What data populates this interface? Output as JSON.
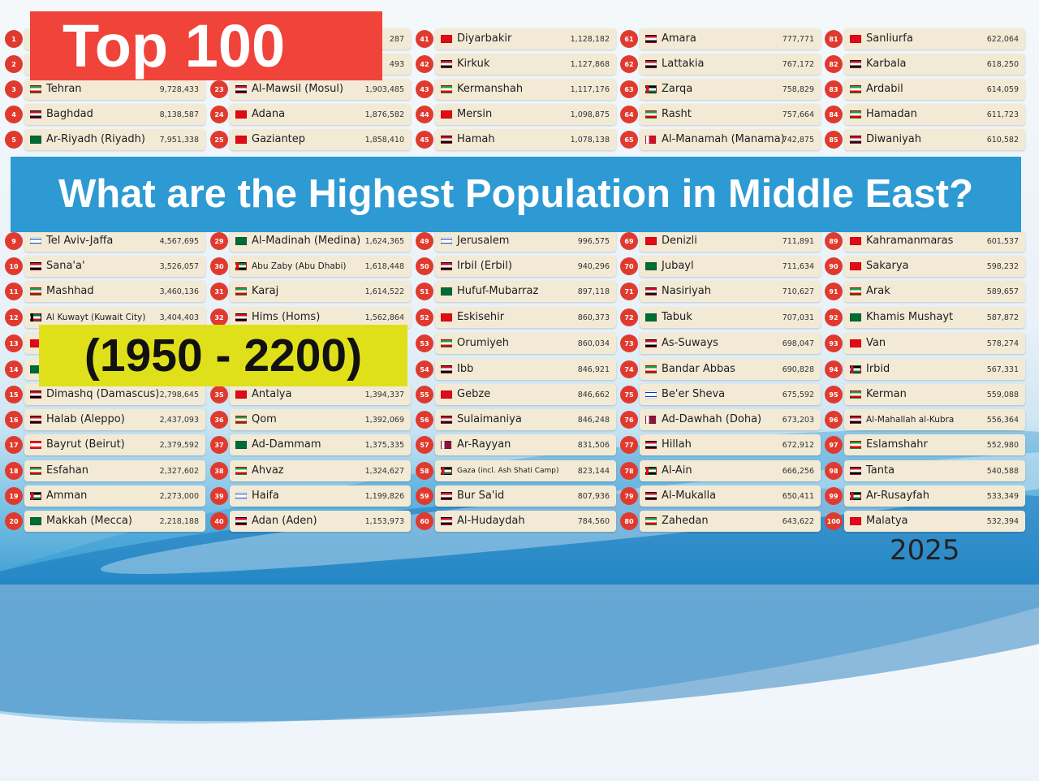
{
  "title_banner": "Top 100",
  "question_banner": "What are the Highest Population in Middle East?",
  "year_range_banner": "(1950 - 2200)",
  "current_year": "2025",
  "columns": [
    [
      {
        "rank": "1",
        "city": "",
        "pop": "",
        "flag": "ir"
      },
      {
        "rank": "2",
        "city": "",
        "pop": "",
        "flag": "ir"
      },
      {
        "rank": "3",
        "city": "Tehran",
        "pop": "9,728,433",
        "flag": "ir"
      },
      {
        "rank": "4",
        "city": "Baghdad",
        "pop": "8,138,587",
        "flag": "iq"
      },
      {
        "rank": "5",
        "city": "Ar-Riyadh (Riyadh)",
        "pop": "7,951,338",
        "flag": "sa"
      },
      {
        "rank": "",
        "city": "",
        "pop": "",
        "flag": ""
      },
      {
        "rank": "",
        "city": "",
        "pop": "",
        "flag": ""
      },
      {
        "rank": "",
        "city": "",
        "pop": "",
        "flag": ""
      },
      {
        "rank": "9",
        "city": "Tel Aviv-Jaffa",
        "pop": "4,567,695",
        "flag": "il"
      },
      {
        "rank": "10",
        "city": "Sana'a'",
        "pop": "3,526,057",
        "flag": "ye"
      },
      {
        "rank": "11",
        "city": "Mashhad",
        "pop": "3,460,136",
        "flag": "ir"
      },
      {
        "rank": "12",
        "city": "Al Kuwayt (Kuwait City)",
        "pop": "3,404,403",
        "flag": "kw"
      },
      {
        "rank": "13",
        "city": "",
        "pop": "",
        "flag": "tr"
      },
      {
        "rank": "14",
        "city": "",
        "pop": "",
        "flag": "sa"
      },
      {
        "rank": "15",
        "city": "Dimashq (Damascus)",
        "pop": "2,798,645",
        "flag": "sy"
      },
      {
        "rank": "16",
        "city": "Halab (Aleppo)",
        "pop": "2,437,093",
        "flag": "sy"
      },
      {
        "rank": "17",
        "city": "Bayrut (Beirut)",
        "pop": "2,379,592",
        "flag": "lb"
      },
      {
        "rank": "18",
        "city": "Esfahan",
        "pop": "2,327,602",
        "flag": "ir"
      },
      {
        "rank": "19",
        "city": "Amman",
        "pop": "2,273,000",
        "flag": "jo"
      },
      {
        "rank": "20",
        "city": "Makkah (Mecca)",
        "pop": "2,218,188",
        "flag": "sa"
      }
    ],
    [
      {
        "rank": "",
        "city": "",
        "pop": "287",
        "flag": ""
      },
      {
        "rank": "",
        "city": "",
        "pop": "493",
        "flag": ""
      },
      {
        "rank": "23",
        "city": "Al-Mawsil (Mosul)",
        "pop": "1,903,485",
        "flag": "iq"
      },
      {
        "rank": "24",
        "city": "Adana",
        "pop": "1,876,582",
        "flag": "tr"
      },
      {
        "rank": "25",
        "city": "Gaziantep",
        "pop": "1,858,410",
        "flag": "tr"
      },
      {
        "rank": "",
        "city": "",
        "pop": "",
        "flag": ""
      },
      {
        "rank": "",
        "city": "",
        "pop": "",
        "flag": ""
      },
      {
        "rank": "",
        "city": "",
        "pop": "",
        "flag": ""
      },
      {
        "rank": "29",
        "city": "Al-Madinah (Medina)",
        "pop": "1,624,365",
        "flag": "sa"
      },
      {
        "rank": "30",
        "city": "Abu Zaby (Abu Dhabi)",
        "pop": "1,618,448",
        "flag": "ae"
      },
      {
        "rank": "31",
        "city": "Karaj",
        "pop": "1,614,522",
        "flag": "ir"
      },
      {
        "rank": "32",
        "city": "Hims (Homs)",
        "pop": "1,562,864",
        "flag": "sy"
      },
      {
        "rank": "",
        "city": "",
        "pop": "",
        "flag": ""
      },
      {
        "rank": "",
        "city": "",
        "pop": "",
        "flag": ""
      },
      {
        "rank": "35",
        "city": "Antalya",
        "pop": "1,394,337",
        "flag": "tr"
      },
      {
        "rank": "36",
        "city": "Qom",
        "pop": "1,392,069",
        "flag": "ir"
      },
      {
        "rank": "37",
        "city": "Ad-Dammam",
        "pop": "1,375,335",
        "flag": "sa"
      },
      {
        "rank": "38",
        "city": "Ahvaz",
        "pop": "1,324,627",
        "flag": "ir"
      },
      {
        "rank": "39",
        "city": "Haifa",
        "pop": "1,199,826",
        "flag": "il"
      },
      {
        "rank": "40",
        "city": "Adan (Aden)",
        "pop": "1,153,973",
        "flag": "ye"
      }
    ],
    [
      {
        "rank": "41",
        "city": "Diyarbakir",
        "pop": "1,128,182",
        "flag": "tr"
      },
      {
        "rank": "42",
        "city": "Kirkuk",
        "pop": "1,127,868",
        "flag": "iq"
      },
      {
        "rank": "43",
        "city": "Kermanshah",
        "pop": "1,117,176",
        "flag": "ir"
      },
      {
        "rank": "44",
        "city": "Mersin",
        "pop": "1,098,875",
        "flag": "tr"
      },
      {
        "rank": "45",
        "city": "Hamah",
        "pop": "1,078,138",
        "flag": "sy"
      },
      {
        "rank": "",
        "city": "",
        "pop": "",
        "flag": ""
      },
      {
        "rank": "",
        "city": "",
        "pop": "",
        "flag": ""
      },
      {
        "rank": "",
        "city": "",
        "pop": "",
        "flag": ""
      },
      {
        "rank": "49",
        "city": "Jerusalem",
        "pop": "996,575",
        "flag": "il"
      },
      {
        "rank": "50",
        "city": "Irbil (Erbil)",
        "pop": "940,296",
        "flag": "iq"
      },
      {
        "rank": "51",
        "city": "Hufuf-Mubarraz",
        "pop": "897,118",
        "flag": "sa"
      },
      {
        "rank": "52",
        "city": "Eskisehir",
        "pop": "860,373",
        "flag": "tr"
      },
      {
        "rank": "53",
        "city": "Orumiyeh",
        "pop": "860,034",
        "flag": "ir"
      },
      {
        "rank": "54",
        "city": "Ibb",
        "pop": "846,921",
        "flag": "ye"
      },
      {
        "rank": "55",
        "city": "Gebze",
        "pop": "846,662",
        "flag": "tr"
      },
      {
        "rank": "56",
        "city": "Sulaimaniya",
        "pop": "846,248",
        "flag": "iq"
      },
      {
        "rank": "57",
        "city": "Ar-Rayyan",
        "pop": "831,506",
        "flag": "qa"
      },
      {
        "rank": "58",
        "city": "Gaza (incl. Ash Shati Camp)",
        "pop": "823,144",
        "flag": "ps"
      },
      {
        "rank": "59",
        "city": "Bur Sa'id",
        "pop": "807,936",
        "flag": "eg"
      },
      {
        "rank": "60",
        "city": "Al-Hudaydah",
        "pop": "784,560",
        "flag": "ye"
      }
    ],
    [
      {
        "rank": "61",
        "city": "Amara",
        "pop": "777,771",
        "flag": "iq"
      },
      {
        "rank": "62",
        "city": "Lattakia",
        "pop": "767,172",
        "flag": "sy"
      },
      {
        "rank": "63",
        "city": "Zarqa",
        "pop": "758,829",
        "flag": "jo"
      },
      {
        "rank": "64",
        "city": "Rasht",
        "pop": "757,664",
        "flag": "ir"
      },
      {
        "rank": "65",
        "city": "Al-Manamah (Manama)",
        "pop": "742,875",
        "flag": "bh"
      },
      {
        "rank": "",
        "city": "",
        "pop": "",
        "flag": ""
      },
      {
        "rank": "",
        "city": "",
        "pop": "",
        "flag": ""
      },
      {
        "rank": "",
        "city": "",
        "pop": "",
        "flag": ""
      },
      {
        "rank": "69",
        "city": "Denizli",
        "pop": "711,891",
        "flag": "tr"
      },
      {
        "rank": "70",
        "city": "Jubayl",
        "pop": "711,634",
        "flag": "sa"
      },
      {
        "rank": "71",
        "city": "Nasiriyah",
        "pop": "710,627",
        "flag": "iq"
      },
      {
        "rank": "72",
        "city": "Tabuk",
        "pop": "707,031",
        "flag": "sa"
      },
      {
        "rank": "73",
        "city": "As-Suways",
        "pop": "698,047",
        "flag": "eg"
      },
      {
        "rank": "74",
        "city": "Bandar Abbas",
        "pop": "690,828",
        "flag": "ir"
      },
      {
        "rank": "75",
        "city": "Be'er Sheva",
        "pop": "675,592",
        "flag": "il"
      },
      {
        "rank": "76",
        "city": "Ad-Dawhah (Doha)",
        "pop": "673,203",
        "flag": "qa"
      },
      {
        "rank": "77",
        "city": "Hillah",
        "pop": "672,912",
        "flag": "iq"
      },
      {
        "rank": "78",
        "city": "Al-Ain",
        "pop": "666,256",
        "flag": "ae"
      },
      {
        "rank": "79",
        "city": "Al-Mukalla",
        "pop": "650,411",
        "flag": "ye"
      },
      {
        "rank": "80",
        "city": "Zahedan",
        "pop": "643,622",
        "flag": "ir"
      }
    ],
    [
      {
        "rank": "81",
        "city": "Sanliurfa",
        "pop": "622,064",
        "flag": "tr"
      },
      {
        "rank": "82",
        "city": "Karbala",
        "pop": "618,250",
        "flag": "iq"
      },
      {
        "rank": "83",
        "city": "Ardabil",
        "pop": "614,059",
        "flag": "ir"
      },
      {
        "rank": "84",
        "city": "Hamadan",
        "pop": "611,723",
        "flag": "ir"
      },
      {
        "rank": "85",
        "city": "Diwaniyah",
        "pop": "610,582",
        "flag": "iq"
      },
      {
        "rank": "",
        "city": "",
        "pop": "",
        "flag": ""
      },
      {
        "rank": "",
        "city": "",
        "pop": "",
        "flag": ""
      },
      {
        "rank": "",
        "city": "",
        "pop": "",
        "flag": ""
      },
      {
        "rank": "89",
        "city": "Kahramanmaras",
        "pop": "601,537",
        "flag": "tr"
      },
      {
        "rank": "90",
        "city": "Sakarya",
        "pop": "598,232",
        "flag": "tr"
      },
      {
        "rank": "91",
        "city": "Arak",
        "pop": "589,657",
        "flag": "ir"
      },
      {
        "rank": "92",
        "city": "Khamis Mushayt",
        "pop": "587,872",
        "flag": "sa"
      },
      {
        "rank": "93",
        "city": "Van",
        "pop": "578,274",
        "flag": "tr"
      },
      {
        "rank": "94",
        "city": "Irbid",
        "pop": "567,331",
        "flag": "jo"
      },
      {
        "rank": "95",
        "city": "Kerman",
        "pop": "559,088",
        "flag": "ir"
      },
      {
        "rank": "96",
        "city": "Al-Mahallah al-Kubra",
        "pop": "556,364",
        "flag": "eg"
      },
      {
        "rank": "97",
        "city": "Eslamshahr",
        "pop": "552,980",
        "flag": "ir"
      },
      {
        "rank": "98",
        "city": "Tanta",
        "pop": "540,588",
        "flag": "eg"
      },
      {
        "rank": "99",
        "city": "Ar-Rusayfah",
        "pop": "533,349",
        "flag": "jo"
      },
      {
        "rank": "100",
        "city": "Malatya",
        "pop": "532,394",
        "flag": "tr"
      }
    ]
  ]
}
